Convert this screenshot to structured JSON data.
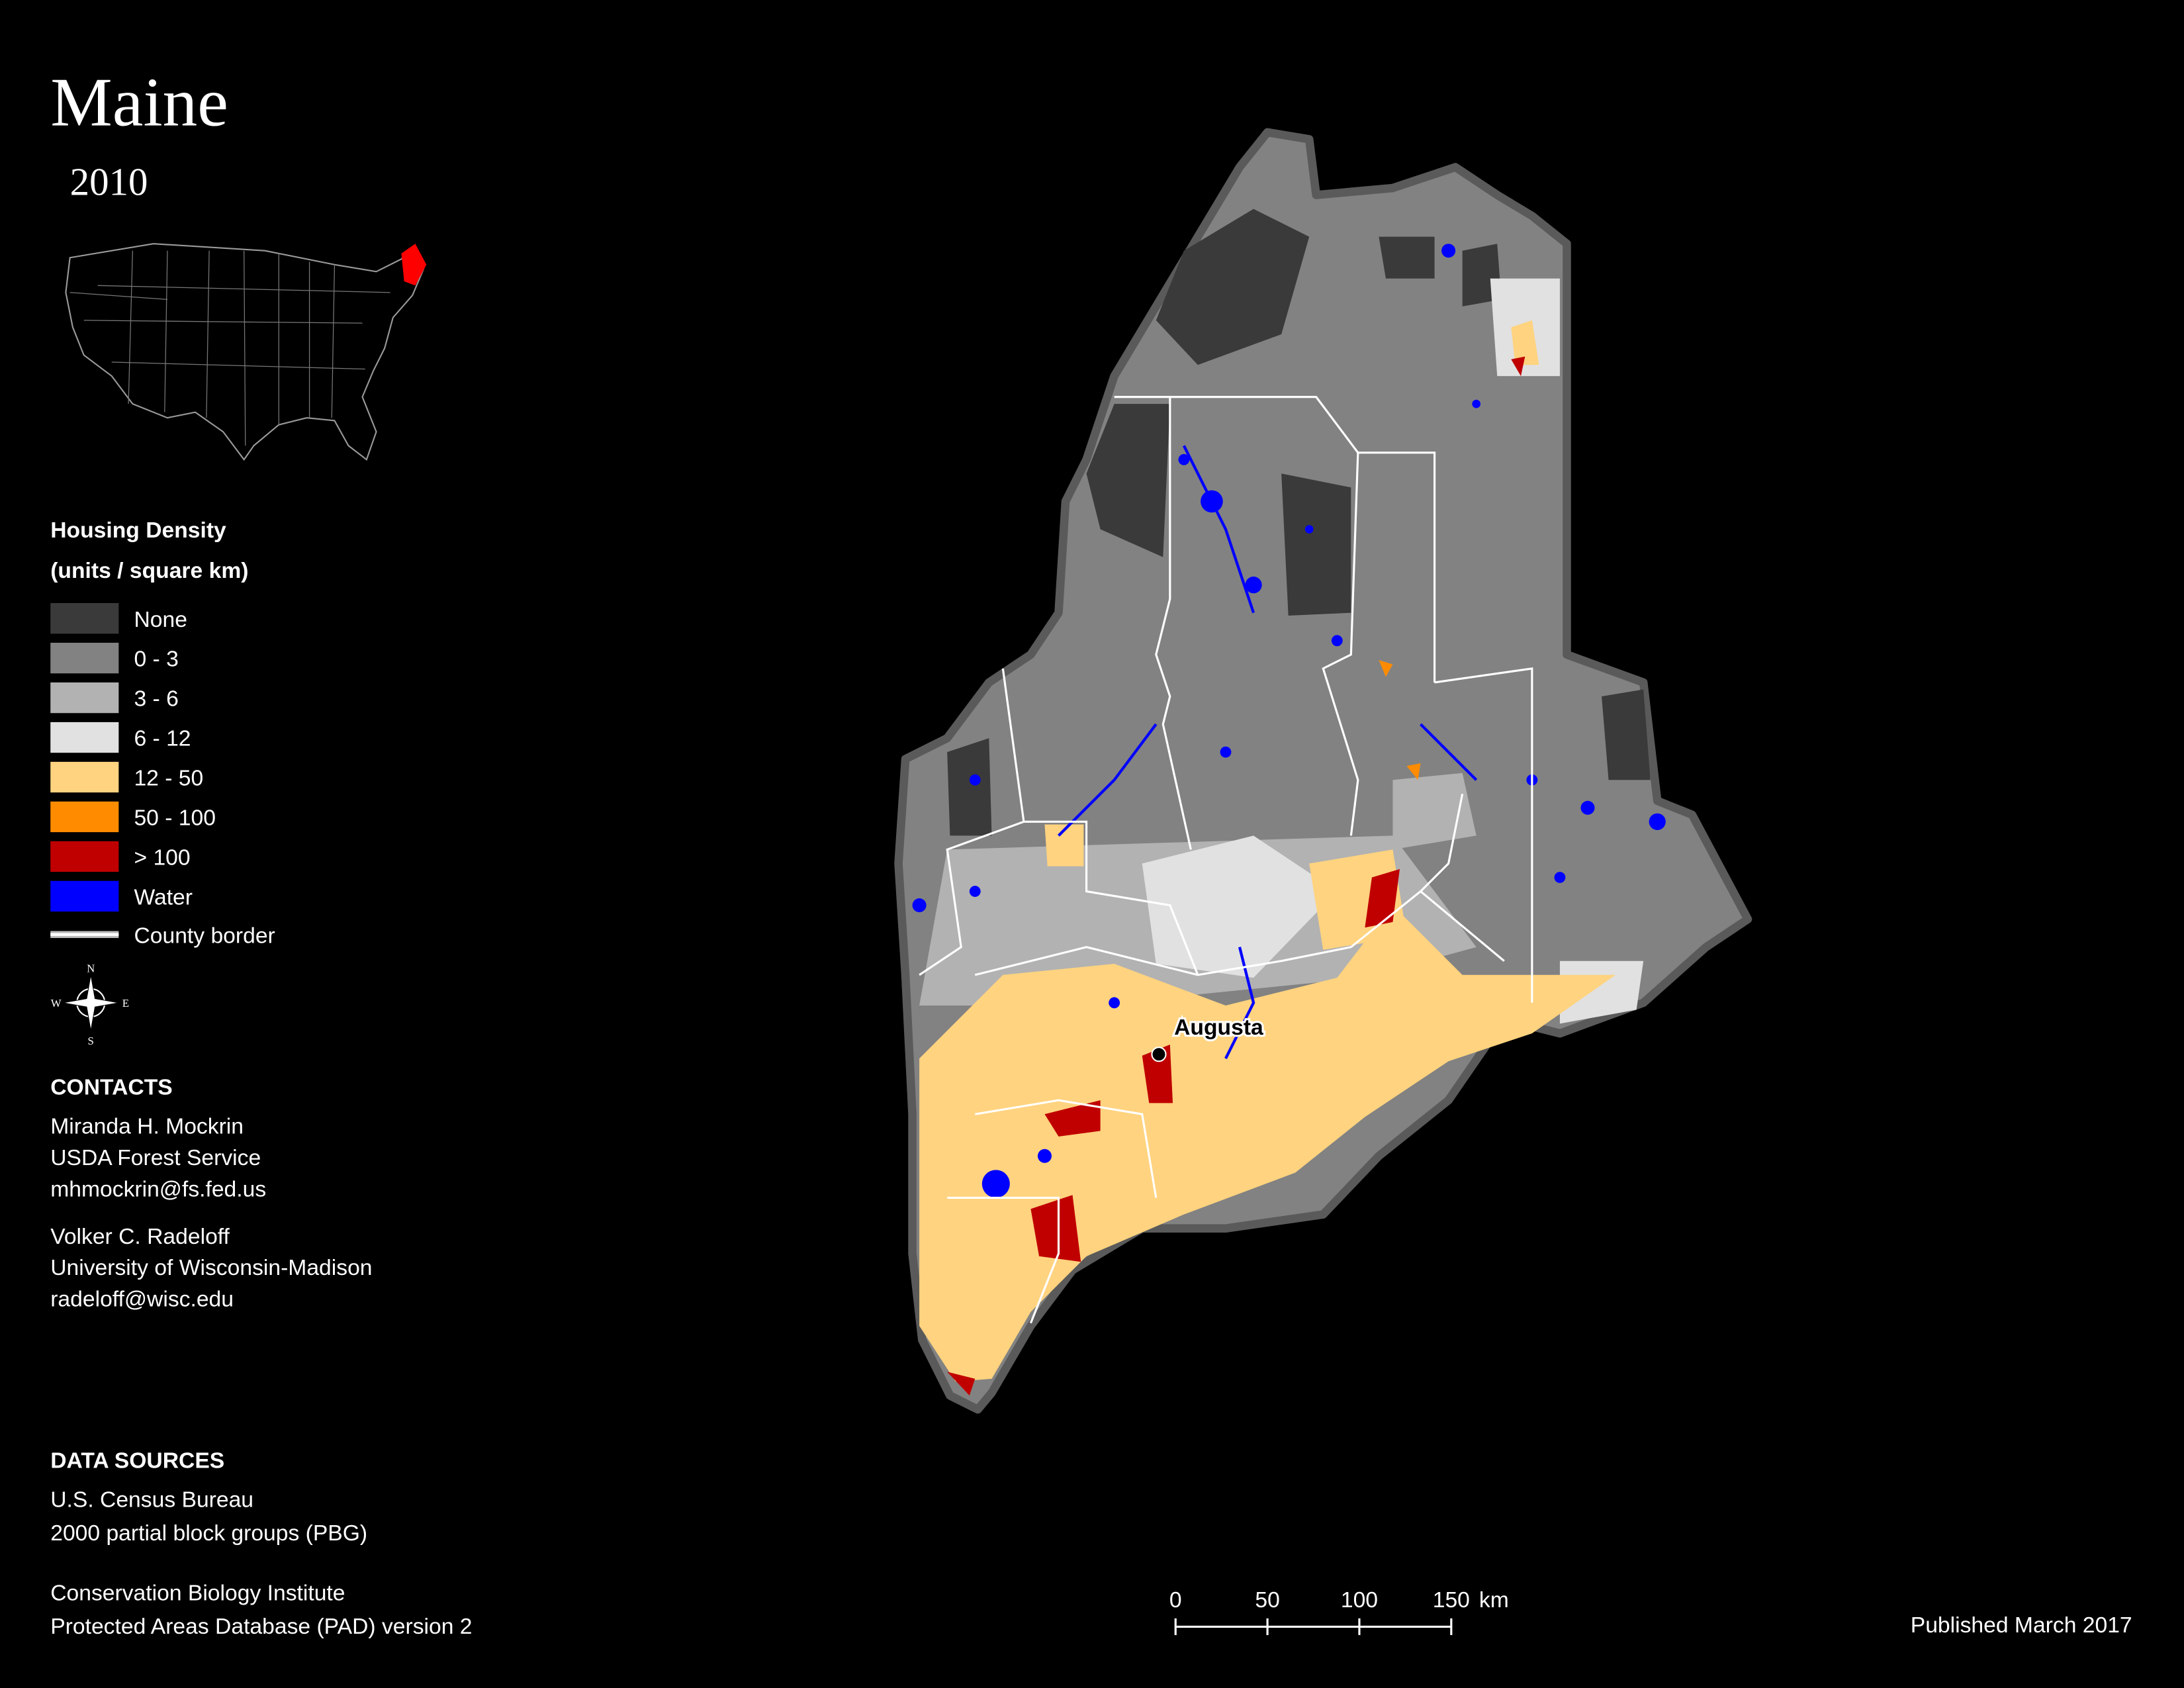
{
  "title": "Maine",
  "subtitle": "2010",
  "legend": {
    "title": "Housing Density",
    "subtitle": "(units / square km)",
    "items": [
      {
        "label": "None",
        "color": "#3a3a3a"
      },
      {
        "label": "0 - 3",
        "color": "#828282"
      },
      {
        "label": "3 - 6",
        "color": "#b2b2b2"
      },
      {
        "label": "6 - 12",
        "color": "#e1e1e1"
      },
      {
        "label": "12 - 50",
        "color": "#ffd37f"
      },
      {
        "label": "50 - 100",
        "color": "#ff8c00"
      },
      {
        "label": "> 100",
        "color": "#c00000"
      },
      {
        "label": "Water",
        "color": "#0000ff"
      }
    ],
    "border": {
      "label": "County border"
    }
  },
  "city": {
    "label": "Augusta"
  },
  "compass": {
    "n": "N",
    "s": "S",
    "e": "E",
    "w": "W"
  },
  "contacts": {
    "title": "CONTACTS",
    "people": [
      [
        "Miranda H. Mockrin",
        "USDA Forest Service",
        "mhmockrin@fs.fed.us"
      ],
      [
        "Volker C. Radeloff",
        "University of Wisconsin-Madison",
        "radeloff@wisc.edu"
      ]
    ]
  },
  "data_sources": {
    "title": "DATA SOURCES",
    "groups": [
      [
        "U.S. Census Bureau",
        "2000 partial block groups (PBG)"
      ],
      [
        "Conservation Biology Institute",
        "Protected Areas Database (PAD) version 2"
      ]
    ]
  },
  "scale_bar": {
    "ticks": [
      0,
      50,
      100,
      150
    ],
    "unit": "km"
  },
  "published": "Published March 2017"
}
